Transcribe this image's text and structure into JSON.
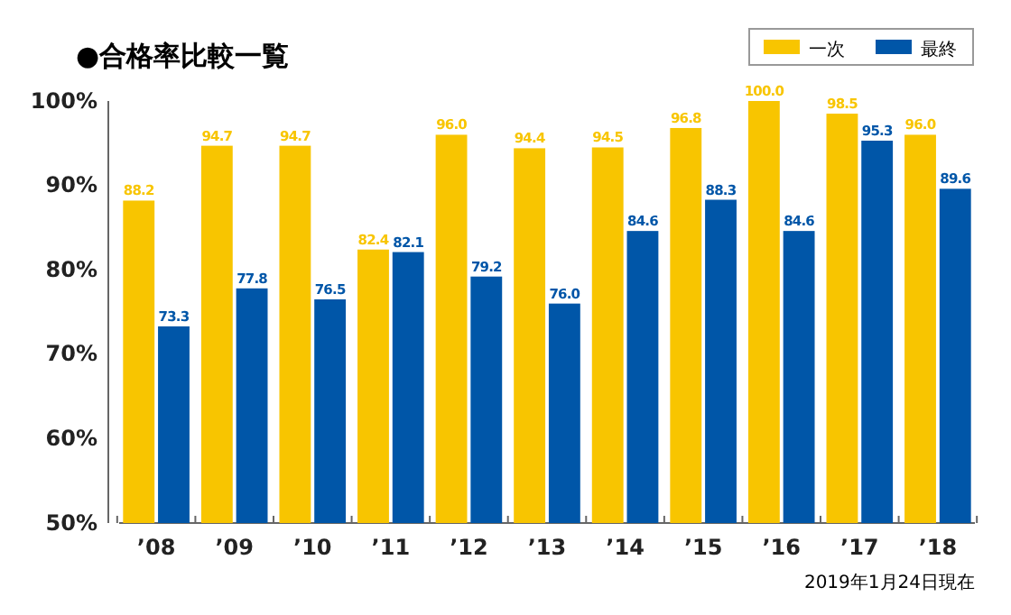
{
  "chart_data": {
    "type": "bar",
    "title": "●合格率比較一覧",
    "categories": [
      "’08",
      "’09",
      "’10",
      "’11",
      "’12",
      "’13",
      "’14",
      "’15",
      "’16",
      "’17",
      "’18"
    ],
    "series": [
      {
        "name": "一次",
        "color": "#f8c500",
        "values": [
          88.2,
          94.7,
          94.7,
          82.4,
          96.0,
          94.4,
          94.5,
          96.8,
          100.0,
          98.5,
          96.0
        ],
        "value_labels": [
          "88.2",
          "94.7",
          "94.7",
          "82.4",
          "96.0",
          "94.4",
          "94.5",
          "96.8",
          "100.0",
          "98.5",
          "96.0"
        ]
      },
      {
        "name": "最終",
        "color": "#0056a8",
        "values": [
          73.3,
          77.8,
          76.5,
          82.1,
          79.2,
          76.0,
          84.6,
          88.3,
          84.6,
          95.3,
          89.6
        ],
        "value_labels": [
          "73.3",
          "77.8",
          "76.5",
          "82.1",
          "79.2",
          "76.0",
          "84.6",
          "88.3",
          "84.6",
          "95.3",
          "89.6"
        ]
      }
    ],
    "ylim": [
      50,
      100
    ],
    "yticks": [
      {
        "value": 50,
        "label": "50%"
      },
      {
        "value": 60,
        "label": "60%"
      },
      {
        "value": 70,
        "label": "70%"
      },
      {
        "value": 80,
        "label": "80%"
      },
      {
        "value": 90,
        "label": "90%"
      },
      {
        "value": 100,
        "label": "100%"
      }
    ],
    "legend": "top right",
    "grid": false,
    "annotations": [
      "2019年1月24日現在"
    ]
  }
}
